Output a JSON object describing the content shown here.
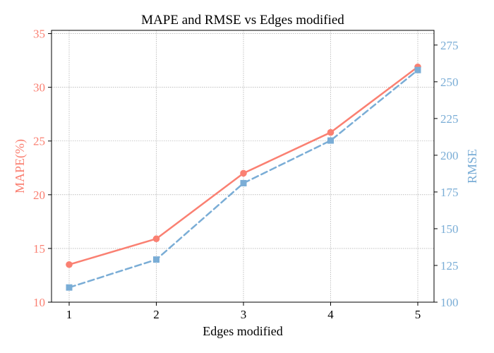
{
  "chart_data": {
    "type": "line",
    "title": "MAPE and RMSE vs Edges modified",
    "xlabel": "Edges modified",
    "x": [
      1,
      2,
      3,
      4,
      5
    ],
    "x_ticks": [
      "1",
      "2",
      "3",
      "4",
      "5"
    ],
    "grid": true,
    "series": [
      {
        "name": "MAPE(%)",
        "axis": "left",
        "color": "#fa8072",
        "style": "solid",
        "marker": "circle",
        "values": [
          13.5,
          15.9,
          22.0,
          25.8,
          31.9
        ]
      },
      {
        "name": "RMSE",
        "axis": "right",
        "color": "#7aadd6",
        "style": "dashed",
        "marker": "square",
        "values": [
          110,
          129,
          181,
          210,
          258
        ]
      }
    ],
    "y_left": {
      "label": "MAPE(%)",
      "color": "#fa8072",
      "ylim": [
        10,
        35.3
      ],
      "ticks": [
        "10",
        "15",
        "20",
        "25",
        "30",
        "35"
      ]
    },
    "y_right": {
      "label": "RMSE",
      "color": "#7aadd6",
      "ylim": [
        100,
        285
      ],
      "ticks": [
        "100",
        "125",
        "150",
        "175",
        "200",
        "225",
        "250",
        "275"
      ]
    }
  }
}
